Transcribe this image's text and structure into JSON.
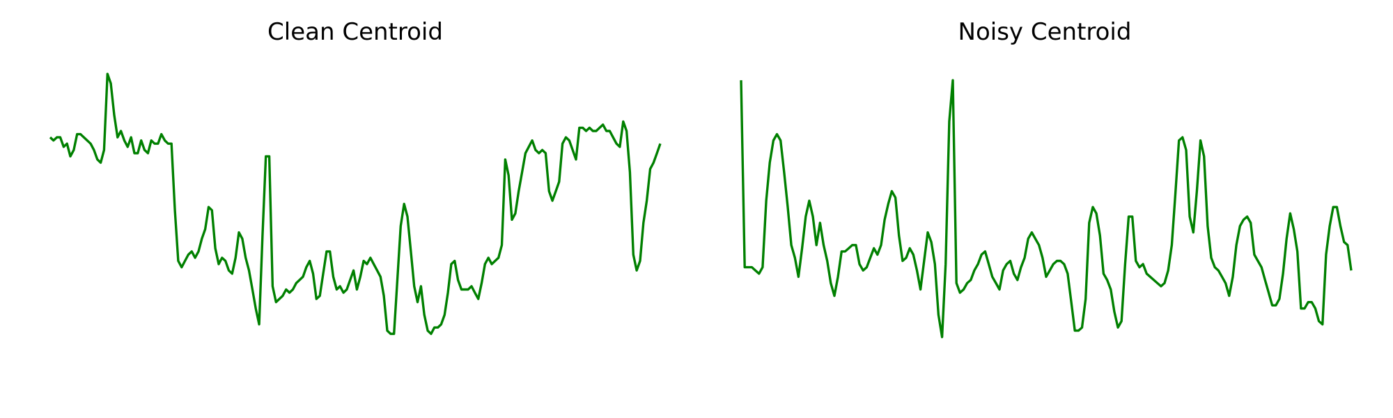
{
  "colors": {
    "line": "#008000",
    "background": "#ffffff"
  },
  "chart_data": [
    {
      "type": "line",
      "title": "Clean Centroid",
      "axes_visible": false,
      "grid": false,
      "ylim": [
        0,
        1
      ],
      "series": [
        {
          "values": [
            0.78,
            0.77,
            0.78,
            0.78,
            0.75,
            0.76,
            0.72,
            0.74,
            0.79,
            0.79,
            0.78,
            0.77,
            0.76,
            0.74,
            0.71,
            0.7,
            0.74,
            0.98,
            0.95,
            0.85,
            0.78,
            0.8,
            0.77,
            0.75,
            0.78,
            0.73,
            0.73,
            0.77,
            0.74,
            0.73,
            0.77,
            0.76,
            0.76,
            0.79,
            0.77,
            0.76,
            0.76,
            0.55,
            0.39,
            0.37,
            0.39,
            0.41,
            0.42,
            0.4,
            0.42,
            0.46,
            0.49,
            0.56,
            0.55,
            0.43,
            0.38,
            0.4,
            0.39,
            0.36,
            0.35,
            0.4,
            0.48,
            0.46,
            0.4,
            0.36,
            0.3,
            0.24,
            0.19,
            0.47,
            0.72,
            0.72,
            0.31,
            0.26,
            0.27,
            0.28,
            0.3,
            0.29,
            0.3,
            0.32,
            0.33,
            0.34,
            0.37,
            0.39,
            0.35,
            0.27,
            0.28,
            0.35,
            0.42,
            0.42,
            0.34,
            0.3,
            0.31,
            0.29,
            0.3,
            0.33,
            0.36,
            0.3,
            0.34,
            0.39,
            0.38,
            0.4,
            0.38,
            0.36,
            0.34,
            0.28,
            0.17,
            0.16,
            0.16,
            0.33,
            0.5,
            0.57,
            0.53,
            0.42,
            0.31,
            0.26,
            0.31,
            0.22,
            0.17,
            0.16,
            0.18,
            0.18,
            0.19,
            0.22,
            0.29,
            0.38,
            0.39,
            0.33,
            0.3,
            0.3,
            0.3,
            0.31,
            0.29,
            0.27,
            0.32,
            0.38,
            0.4,
            0.38,
            0.39,
            0.4,
            0.44,
            0.71,
            0.66,
            0.52,
            0.54,
            0.61,
            0.67,
            0.73,
            0.75,
            0.77,
            0.74,
            0.73,
            0.74,
            0.73,
            0.61,
            0.58,
            0.61,
            0.64,
            0.76,
            0.78,
            0.77,
            0.74,
            0.71,
            0.81,
            0.81,
            0.8,
            0.81,
            0.8,
            0.8,
            0.81,
            0.82,
            0.8,
            0.8,
            0.78,
            0.76,
            0.75,
            0.83,
            0.8,
            0.67,
            0.41,
            0.36,
            0.39,
            0.51,
            0.58,
            0.68,
            0.7,
            0.73,
            0.76
          ]
        }
      ]
    },
    {
      "type": "line",
      "title": "Noisy Centroid",
      "axes_visible": false,
      "grid": false,
      "ylim": [
        0,
        1
      ],
      "series": [
        {
          "values": [
            0.96,
            0.37,
            0.37,
            0.37,
            0.36,
            0.35,
            0.37,
            0.58,
            0.7,
            0.77,
            0.79,
            0.77,
            0.67,
            0.56,
            0.44,
            0.4,
            0.34,
            0.43,
            0.53,
            0.58,
            0.53,
            0.44,
            0.51,
            0.44,
            0.39,
            0.32,
            0.28,
            0.34,
            0.42,
            0.42,
            0.43,
            0.44,
            0.44,
            0.38,
            0.36,
            0.37,
            0.4,
            0.43,
            0.41,
            0.44,
            0.52,
            0.57,
            0.61,
            0.59,
            0.47,
            0.39,
            0.4,
            0.43,
            0.41,
            0.36,
            0.3,
            0.39,
            0.48,
            0.45,
            0.38,
            0.22,
            0.15,
            0.38,
            0.83,
            0.96,
            0.32,
            0.29,
            0.3,
            0.32,
            0.33,
            0.36,
            0.38,
            0.41,
            0.42,
            0.38,
            0.34,
            0.32,
            0.3,
            0.36,
            0.38,
            0.39,
            0.35,
            0.33,
            0.37,
            0.4,
            0.46,
            0.48,
            0.46,
            0.44,
            0.4,
            0.34,
            0.36,
            0.38,
            0.39,
            0.39,
            0.38,
            0.35,
            0.26,
            0.17,
            0.17,
            0.18,
            0.27,
            0.51,
            0.56,
            0.54,
            0.47,
            0.35,
            0.33,
            0.3,
            0.23,
            0.18,
            0.2,
            0.38,
            0.53,
            0.53,
            0.39,
            0.37,
            0.38,
            0.35,
            0.34,
            0.33,
            0.32,
            0.31,
            0.32,
            0.36,
            0.44,
            0.6,
            0.77,
            0.78,
            0.74,
            0.53,
            0.48,
            0.61,
            0.77,
            0.72,
            0.5,
            0.4,
            0.37,
            0.36,
            0.34,
            0.32,
            0.28,
            0.34,
            0.44,
            0.5,
            0.52,
            0.53,
            0.51,
            0.41,
            0.39,
            0.37,
            0.33,
            0.29,
            0.25,
            0.25,
            0.27,
            0.35,
            0.46,
            0.54,
            0.49,
            0.42,
            0.24,
            0.24,
            0.26,
            0.26,
            0.24,
            0.2,
            0.19,
            0.41,
            0.5,
            0.56,
            0.56,
            0.5,
            0.45,
            0.44,
            0.36
          ]
        }
      ]
    }
  ]
}
